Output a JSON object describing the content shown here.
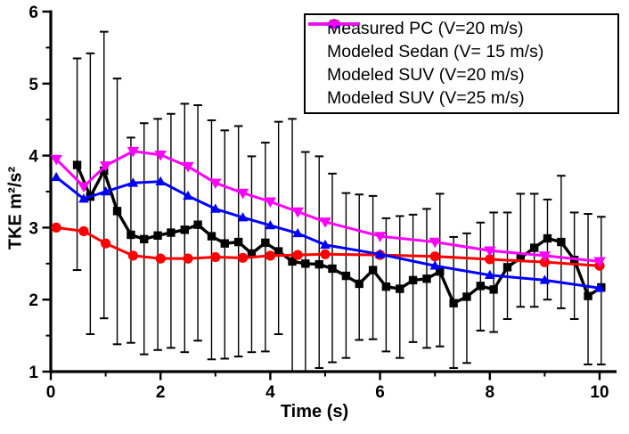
{
  "figure_title": "",
  "axes": {
    "xlabel": "Time (s)",
    "ylabel": "TKE m²/s²",
    "xlim": [
      0,
      10.3
    ],
    "ylim": [
      1,
      6
    ],
    "xticks_major": [
      0,
      2,
      4,
      6,
      8,
      10
    ],
    "xticks_minor": [
      1,
      3,
      5,
      7,
      9
    ],
    "yticks_major": [
      1,
      2,
      3,
      4,
      5,
      6
    ],
    "yticks_minor": [
      1.5,
      2.5,
      3.5,
      4.5,
      5.5
    ],
    "tick_direction": "out",
    "grid": false
  },
  "legend": {
    "position": "top-right",
    "entries": [
      {
        "label": "Measured PC (V=20 m/s)",
        "color": "#000000",
        "marker": "square"
      },
      {
        "label": "Modeled Sedan (V= 15 m/s)",
        "color": "#ff0000",
        "marker": "circle"
      },
      {
        "label": "Modeled SUV (V=20 m/s)",
        "color": "#0000ff",
        "marker": "triangle-up"
      },
      {
        "label": "Modeled SUV (V=25 m/s)",
        "color": "#ff00ff",
        "marker": "triangle-down"
      }
    ]
  },
  "chart_data": {
    "type": "line",
    "title": "",
    "xlabel": "Time (s)",
    "ylabel": "TKE m²/s²",
    "xlim": [
      0,
      10.3
    ],
    "ylim": [
      1,
      6
    ],
    "legend_position": "top-right",
    "series": [
      {
        "name": "Measured PC (V=20 m/s)",
        "color": "#000000",
        "marker": "square",
        "has_error_bars": true,
        "x": [
          0.48,
          0.72,
          0.97,
          1.21,
          1.46,
          1.7,
          1.95,
          2.19,
          2.44,
          2.68,
          2.93,
          3.17,
          3.42,
          3.66,
          3.91,
          4.15,
          4.4,
          4.64,
          4.89,
          5.13,
          5.38,
          5.62,
          5.87,
          6.11,
          6.36,
          6.6,
          6.85,
          7.09,
          7.34,
          7.58,
          7.83,
          8.07,
          8.32,
          8.56,
          8.81,
          9.05,
          9.3,
          9.54,
          9.79,
          10.03
        ],
        "y": [
          3.87,
          3.43,
          3.79,
          3.23,
          2.9,
          2.84,
          2.89,
          2.93,
          2.97,
          3.04,
          2.88,
          2.78,
          2.8,
          2.64,
          2.79,
          2.67,
          2.53,
          2.5,
          2.49,
          2.43,
          2.33,
          2.22,
          2.41,
          2.18,
          2.15,
          2.27,
          2.29,
          2.39,
          1.95,
          2.04,
          2.19,
          2.14,
          2.45,
          2.58,
          2.72,
          2.85,
          2.8,
          2.55,
          2.05,
          2.17
        ],
        "error_top": [
          5.35,
          5.42,
          5.72,
          5.07,
          4.25,
          4.45,
          4.51,
          4.58,
          4.72,
          4.7,
          4.49,
          4.35,
          4.41,
          3.99,
          4.18,
          4.47,
          4.51,
          4.05,
          3.99,
          3.75,
          3.48,
          3.46,
          3.44,
          3.13,
          3.16,
          3.18,
          3.26,
          3.47,
          2.87,
          2.92,
          3.07,
          3.21,
          3.21,
          3.47,
          3.47,
          3.39,
          3.72,
          3.21,
          3.19,
          3.15
        ],
        "error_bottom": [
          2.41,
          1.52,
          1.74,
          1.38,
          1.4,
          1.24,
          1.3,
          1.33,
          1.27,
          1.43,
          1.17,
          1.18,
          1.21,
          1.27,
          1.28,
          1.52,
          1.0,
          1.0,
          1.05,
          1.13,
          1.19,
          1.44,
          1.45,
          1.28,
          1.19,
          1.41,
          1.33,
          1.35,
          1.05,
          1.12,
          1.57,
          1.55,
          1.73,
          1.9,
          1.9,
          2.0,
          1.88,
          1.73,
          1.1,
          1.1
        ]
      },
      {
        "name": "Modeled Sedan (V= 15 m/s)",
        "color": "#ff0000",
        "marker": "circle",
        "has_error_bars": false,
        "x": [
          0.1,
          0.6,
          1.0,
          1.5,
          2.0,
          2.5,
          3.0,
          3.5,
          4.0,
          4.5,
          5.0,
          6.0,
          7.0,
          8.0,
          9.0,
          10.0
        ],
        "y": [
          3.0,
          2.95,
          2.78,
          2.61,
          2.57,
          2.57,
          2.59,
          2.58,
          2.61,
          2.62,
          2.63,
          2.62,
          2.6,
          2.56,
          2.52,
          2.47
        ]
      },
      {
        "name": "Modeled SUV (V=20 m/s)",
        "color": "#0000ff",
        "marker": "triangle-up",
        "has_error_bars": false,
        "x": [
          0.1,
          0.6,
          1.0,
          1.5,
          2.0,
          2.5,
          3.0,
          3.5,
          4.0,
          4.5,
          5.0,
          6.0,
          7.0,
          8.0,
          9.0,
          10.0
        ],
        "y": [
          3.7,
          3.4,
          3.5,
          3.62,
          3.64,
          3.44,
          3.26,
          3.14,
          3.03,
          2.92,
          2.76,
          2.63,
          2.47,
          2.34,
          2.27,
          2.16
        ]
      },
      {
        "name": "Modeled SUV (V=25 m/s)",
        "color": "#ff00ff",
        "marker": "triangle-down",
        "has_error_bars": false,
        "x": [
          0.1,
          0.6,
          1.0,
          1.5,
          2.0,
          2.5,
          3.0,
          3.5,
          4.0,
          4.5,
          5.0,
          6.0,
          7.0,
          8.0,
          9.0,
          10.0
        ],
        "y": [
          3.95,
          3.57,
          3.86,
          4.06,
          4.01,
          3.85,
          3.62,
          3.48,
          3.36,
          3.22,
          3.08,
          2.88,
          2.8,
          2.68,
          2.61,
          2.53
        ]
      }
    ]
  }
}
